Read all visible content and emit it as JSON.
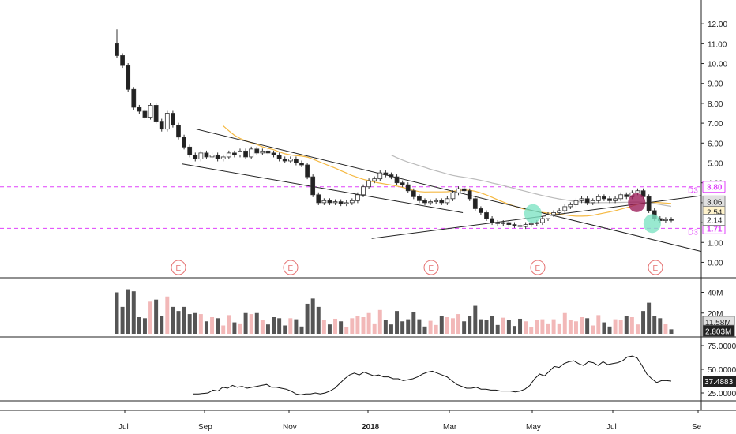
{
  "colors": {
    "up": "#ffffff",
    "down": "#222222",
    "wick": "#333333",
    "ma": "#f5b942",
    "ma_long": "#bbbbbb",
    "trend": "#222222",
    "level": "#e040fb",
    "earnings": "#e57373",
    "vol_up": "#f2b8b8",
    "vol_down": "#555555",
    "rsi": "#111111"
  },
  "chart_data": [
    {
      "type": "line",
      "subtype": "candlestick",
      "title": "",
      "ylabel": "",
      "ylim": [
        -0.3,
        12.8
      ],
      "ytick_labels": [
        "12.00",
        "11.00",
        "10.00",
        "9.00",
        "8.00",
        "7.00",
        "6.00",
        "5.00",
        "4.00",
        "3.00",
        "2.00",
        "1.00",
        "0.00"
      ],
      "x_tick_labels": [
        "Jul",
        "Sep",
        "Nov",
        "2018",
        "Mar",
        "May",
        "Jul",
        "Se"
      ],
      "close_series": [
        10.4,
        9.9,
        8.7,
        7.8,
        7.6,
        7.3,
        7.9,
        7.1,
        6.7,
        7.5,
        6.9,
        6.3,
        5.8,
        5.4,
        5.2,
        5.5,
        5.3,
        5.4,
        5.2,
        5.3,
        5.5,
        5.4,
        5.6,
        5.3,
        5.7,
        5.5,
        5.6,
        5.5,
        5.4,
        5.2,
        5.1,
        5.2,
        5.0,
        4.9,
        4.3,
        3.4,
        3.0,
        3.1,
        3.0,
        3.05,
        2.95,
        3.0,
        3.1,
        3.4,
        3.8,
        4.1,
        4.2,
        4.5,
        4.4,
        4.3,
        4.0,
        3.9,
        3.6,
        3.3,
        3.1,
        3.0,
        3.05,
        3.1,
        3.0,
        3.2,
        3.5,
        3.7,
        3.6,
        3.2,
        2.7,
        2.5,
        2.2,
        2.0,
        1.95,
        2.0,
        1.9,
        1.85,
        1.8,
        1.9,
        1.95,
        2.0,
        2.2,
        2.4,
        2.5,
        2.6,
        2.8,
        2.9,
        3.1,
        3.2,
        3.0,
        3.1,
        3.3,
        3.2,
        3.1,
        3.2,
        3.4,
        3.3,
        3.5,
        3.6,
        3.3,
        2.6,
        2.2,
        2.1,
        2.15,
        2.14
      ],
      "series": [
        {
          "name": "",
          "ma_period": 20
        },
        {
          "name": "",
          "ma_period": 50
        }
      ],
      "horizontal_levels": [
        {
          "value": 3.8,
          "label": "3.80",
          "tag": "D3"
        },
        {
          "value": 1.71,
          "label": "1.71",
          "tag": "D3"
        }
      ],
      "price_labels": [
        {
          "value": 3.06,
          "label": "3.06"
        },
        {
          "value": 2.54,
          "label": "2.54"
        },
        {
          "value": 2.14,
          "label": "2.14"
        }
      ],
      "trendlines": [
        {
          "from": [
            0.28,
            6.7
          ],
          "to": [
            1.0,
            0.55
          ]
        },
        {
          "from": [
            0.26,
            4.95
          ],
          "to": [
            0.66,
            2.5
          ]
        },
        {
          "from": [
            0.53,
            1.2
          ],
          "to": [
            1.0,
            3.35
          ]
        }
      ],
      "earnings_markers": {
        "label": "E",
        "count": 6
      },
      "highlights": [
        "teal",
        "maroon",
        "teal"
      ]
    },
    {
      "type": "bar",
      "title": "volume",
      "ytick_labels": [
        "40M",
        "20M"
      ],
      "value_labels": [
        "11.58M",
        "2.803M"
      ],
      "ylim": [
        0,
        48
      ]
    },
    {
      "type": "line",
      "title": "indicator",
      "ytick_labels": [
        "75.0000",
        "50.0000",
        "25.0000"
      ],
      "value_label": "37.4883",
      "ylim": [
        10,
        80
      ],
      "values": [
        24,
        24,
        24.5,
        25,
        28,
        27,
        31,
        30,
        33,
        31,
        32,
        30,
        31,
        32,
        33,
        34,
        31,
        31,
        30,
        29,
        27,
        24,
        23,
        24,
        24,
        25,
        24,
        25,
        27,
        30,
        35,
        40,
        44,
        46,
        44,
        47,
        45,
        43,
        44,
        42,
        42,
        40,
        40,
        38,
        39,
        40,
        42,
        45,
        47,
        48,
        46,
        44,
        42,
        38,
        34,
        32,
        30,
        30,
        31,
        29,
        29,
        28,
        28,
        27,
        27,
        27,
        26,
        27,
        29,
        33,
        40,
        45,
        43,
        48,
        53,
        52,
        56,
        58,
        59,
        56,
        54,
        58,
        57,
        54,
        58,
        55,
        56,
        57,
        59,
        63,
        64,
        62,
        54,
        45,
        40,
        36,
        38,
        38,
        37.5
      ]
    }
  ]
}
